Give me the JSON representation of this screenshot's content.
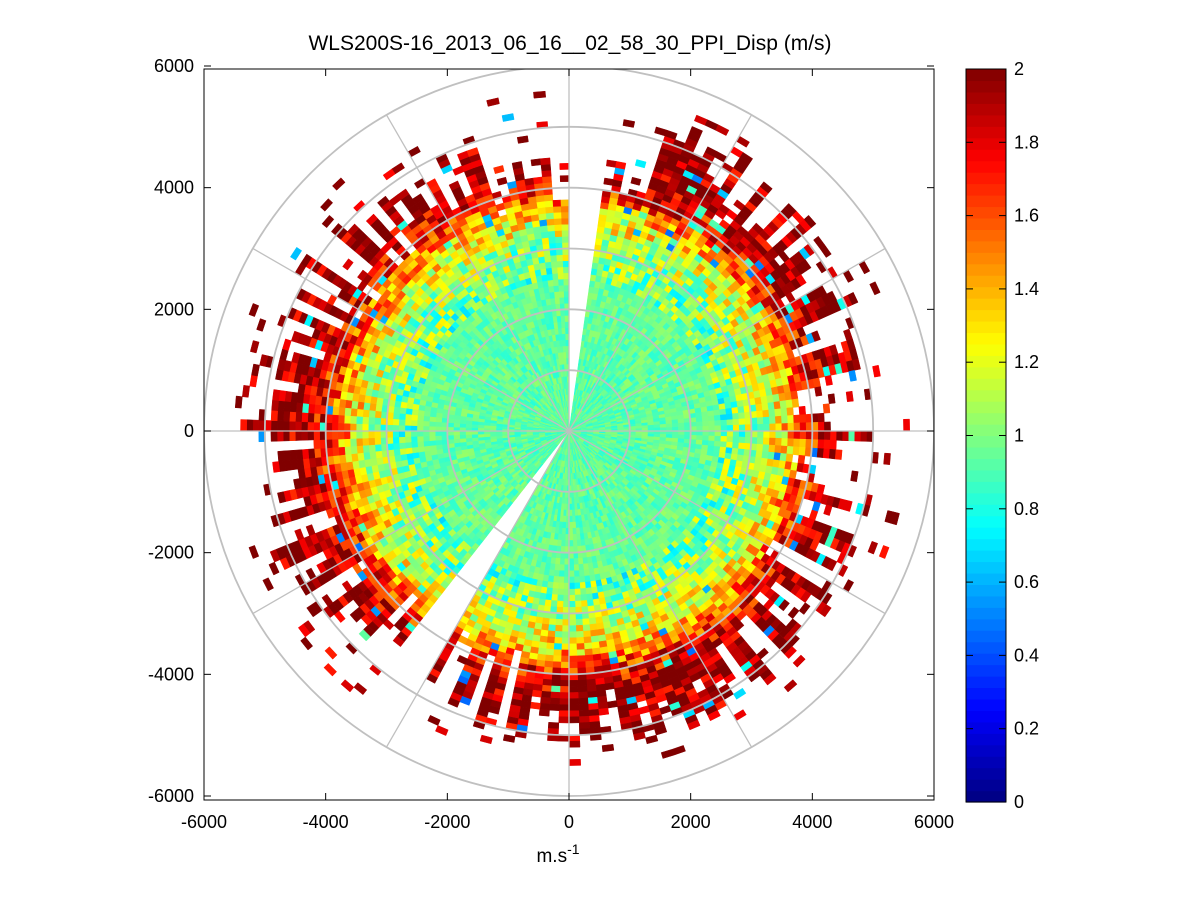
{
  "chart_data": {
    "type": "heatmap",
    "subtype": "polar-ppi",
    "title": "WLS200S-16_2013_06_16__02_58_30_PPI_Disp (m/s)",
    "xlabel_base": "m.s",
    "xlabel_exp": "-1",
    "ylabel": "",
    "xlim": [
      -6000,
      6000
    ],
    "ylim": [
      -6000,
      6000
    ],
    "xticks": [
      "-6000",
      "-4000",
      "-2000",
      "0",
      "2000",
      "4000",
      "6000"
    ],
    "yticks": [
      "6000",
      "4000",
      "2000",
      "0",
      "-2000",
      "-4000",
      "-6000"
    ],
    "range_rings_m": [
      1000,
      2000,
      3000,
      4000,
      5000,
      6000
    ],
    "spokes_deg": [
      0,
      30,
      60,
      90,
      120,
      150,
      180,
      210,
      240,
      270,
      300,
      330
    ],
    "no_data_sectors_deg": [
      [
        0,
        7
      ],
      [
        210,
        218
      ]
    ],
    "gate_spacing_m": 100,
    "beam_width_deg": 2,
    "data_radius_m": [
      0,
      5600
    ],
    "colorbar": {
      "min": 0,
      "max": 2,
      "colormap": "jet",
      "ticks": [
        "0",
        "0.2",
        "0.4",
        "0.6",
        "0.8",
        "1",
        "1.2",
        "1.4",
        "1.6",
        "1.8",
        "2"
      ]
    },
    "radial_profile": [
      {
        "r": 0,
        "mean": 0.92
      },
      {
        "r": 2500,
        "mean": 0.95
      },
      {
        "r": 3000,
        "mean": 1.05
      },
      {
        "r": 3500,
        "mean": 1.3
      },
      {
        "r": 3900,
        "mean": 1.7
      },
      {
        "r": 4300,
        "mean": 1.95
      },
      {
        "r": 5600,
        "mean": 2.0
      }
    ],
    "grid": true,
    "colors": {
      "grid": "#c0c0c0",
      "axes": "#000000",
      "background": "#ffffff"
    }
  }
}
